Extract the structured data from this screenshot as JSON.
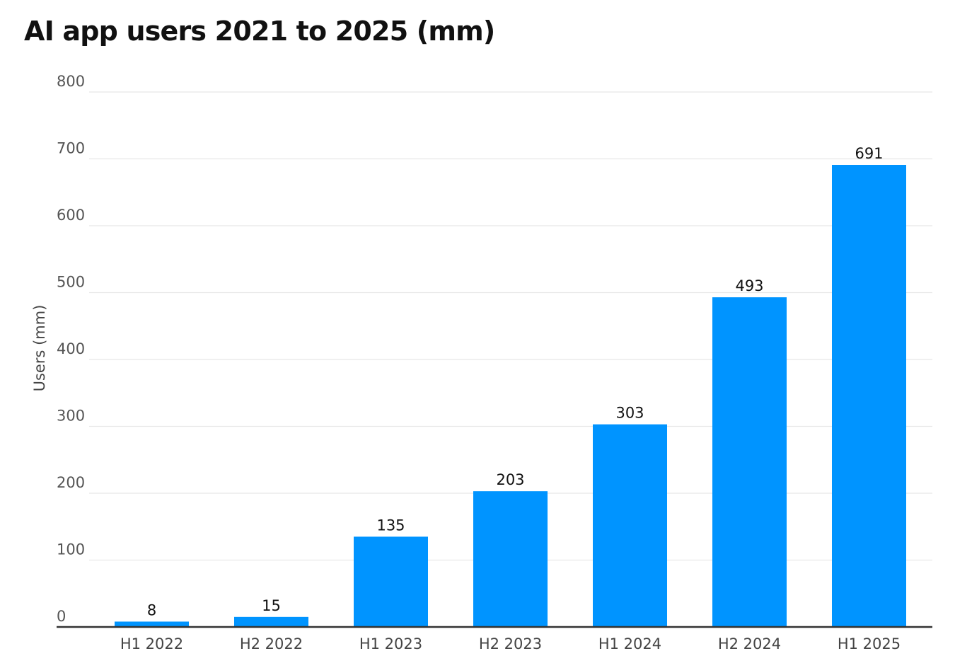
{
  "chart_data": {
    "type": "bar",
    "title": "AI app users 2021 to 2025 (mm)",
    "xlabel": "",
    "ylabel": "Users (mm)",
    "categories": [
      "H1 2022",
      "H2 2022",
      "H1 2023",
      "H2 2023",
      "H1 2024",
      "H2 2024",
      "H1 2025"
    ],
    "values": [
      8,
      15,
      135,
      203,
      303,
      493,
      691
    ],
    "ylim": [
      0,
      800
    ],
    "yticks": [
      0,
      100,
      200,
      300,
      400,
      500,
      600,
      700,
      800
    ],
    "grid": true,
    "legend": "none",
    "data_labels": true,
    "colors": {
      "bar": "#0094FF",
      "grid": "#E8E8E8",
      "baseline": "#333333"
    }
  }
}
